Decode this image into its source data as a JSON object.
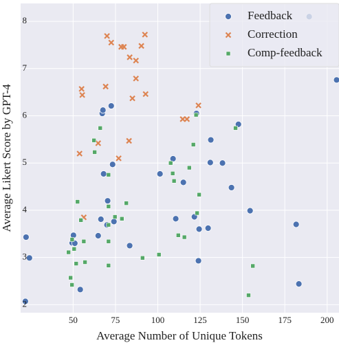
{
  "chart_data": {
    "type": "scatter",
    "x_label": "Average Number of Unique Tokens",
    "y_label": "Average Likert Score by GPT-4",
    "xlim": [
      19,
      207
    ],
    "ylim": [
      1.83,
      8.38
    ],
    "xticks": [
      50,
      75,
      100,
      125,
      150,
      175,
      200
    ],
    "yticks": [
      2,
      3,
      4,
      5,
      6,
      7,
      8
    ],
    "grid": true,
    "legend": "upper right",
    "series": [
      {
        "name": "Feedback",
        "color": "#4c72b0",
        "marker": "circle",
        "x": [
          21.8,
          22.2,
          24.2,
          54.2,
          50.2,
          49.4,
          51,
          64.8,
          66.4,
          70,
          74.1,
          70.4,
          73.3,
          67.2,
          67.6,
          72.5,
          68,
          83.4,
          101.3,
          109,
          115.1,
          110.6,
          121.6,
          129.7,
          124.4,
          124,
          122.8,
          131.3,
          131,
          138.2,
          147.6,
          143.5,
          154.5,
          181.7,
          183.3,
          189.4,
          205.6
        ],
        "values": [
          2.07,
          3.43,
          2.99,
          2.32,
          3.47,
          3.31,
          3.3,
          3.46,
          3.81,
          3.69,
          3.76,
          4.2,
          4.97,
          6.05,
          6.12,
          6.21,
          4.77,
          3.25,
          4.77,
          5.09,
          4.59,
          3.82,
          3.86,
          3.62,
          3.6,
          2.93,
          6.05,
          5.49,
          5.01,
          5.0,
          5.82,
          4.48,
          3.99,
          3.7,
          2.44,
          8.1,
          6.76
        ]
      },
      {
        "name": "Correction",
        "color": "#dd8452",
        "marker": "x",
        "x": [
          70,
          72.5,
          78.4,
          80,
          92.4,
          90.3,
          83.4,
          87.1,
          87.1,
          69.2,
          55,
          55.4,
          85,
          92.8,
          124,
          114.7,
          117.2,
          64.8,
          83,
          53.8,
          76.9,
          56.3
        ],
        "values": [
          7.69,
          7.55,
          7.46,
          7.46,
          7.72,
          7.48,
          7.24,
          7.17,
          6.79,
          6.62,
          6.57,
          6.44,
          6.37,
          6.46,
          6.22,
          5.93,
          5.93,
          5.42,
          5.47,
          5.2,
          5.1,
          3.85
        ]
      },
      {
        "name": "Comp-feedback",
        "color": "#55a868",
        "marker": "square",
        "x": [
          66,
          62.3,
          62.7,
          70.9,
          52.6,
          70.9,
          81.4,
          74.7,
          78.8,
          70.9,
          54.6,
          50.6,
          70.9,
          49.4,
          56.3,
          47.3,
          51.8,
          57,
          70.9,
          48.5,
          49.3,
          91,
          100.7,
          107.6,
          108.8,
          109.6,
          112.1,
          115.7,
          118.6,
          121,
          122.6,
          123.2,
          124.4,
          145.9,
          156.1,
          153.6
        ],
        "values": [
          5.74,
          5.48,
          5.23,
          4.75,
          4.18,
          4.08,
          4.15,
          3.86,
          3.82,
          3.69,
          3.79,
          3.18,
          3.34,
          3.38,
          3.34,
          3.11,
          2.87,
          2.9,
          2.83,
          2.57,
          2.42,
          2.99,
          3.06,
          5.0,
          4.78,
          4.62,
          3.47,
          3.43,
          4.9,
          5.39,
          6.02,
          3.94,
          4.33,
          5.74,
          2.82,
          2.2
        ]
      }
    ]
  }
}
